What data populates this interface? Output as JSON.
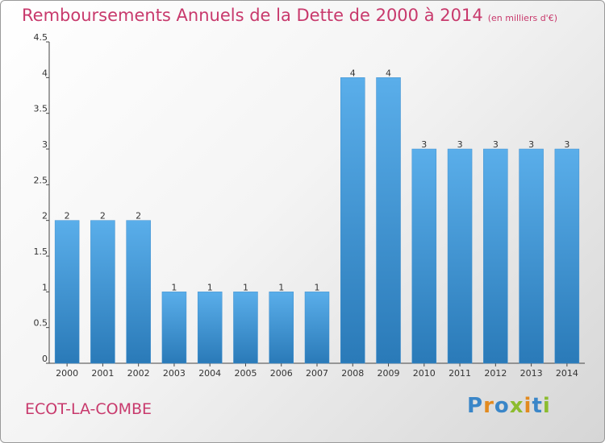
{
  "header": {
    "title": "Remboursements Annuels de la Dette de 2000 à 2014",
    "unit": "(en milliers d'€)"
  },
  "footer": {
    "commune": "ECOT-LA-COMBE",
    "logo": "Proxiti"
  },
  "colors": {
    "title": "#c8396c",
    "bar_light": "#5aaeea",
    "bar_dark": "#2a7ab8"
  },
  "chart_data": {
    "type": "bar",
    "title": "Remboursements Annuels de la Dette de 2000 à 2014",
    "subtitle": "(en milliers d'€)",
    "categories": [
      "2000",
      "2001",
      "2002",
      "2003",
      "2004",
      "2005",
      "2006",
      "2007",
      "2008",
      "2009",
      "2010",
      "2011",
      "2012",
      "2013",
      "2014"
    ],
    "values": [
      2,
      2,
      2,
      1,
      1,
      1,
      1,
      1,
      4,
      4,
      3,
      3,
      3,
      3,
      3
    ],
    "ylim": [
      0,
      4.5
    ],
    "yticks": [
      "0",
      "0.5",
      "1",
      "1.5",
      "2",
      "2.5",
      "3",
      "3.5",
      "4",
      "4.5"
    ],
    "xlabel": "",
    "ylabel": "",
    "grid": false,
    "legend": "none"
  }
}
